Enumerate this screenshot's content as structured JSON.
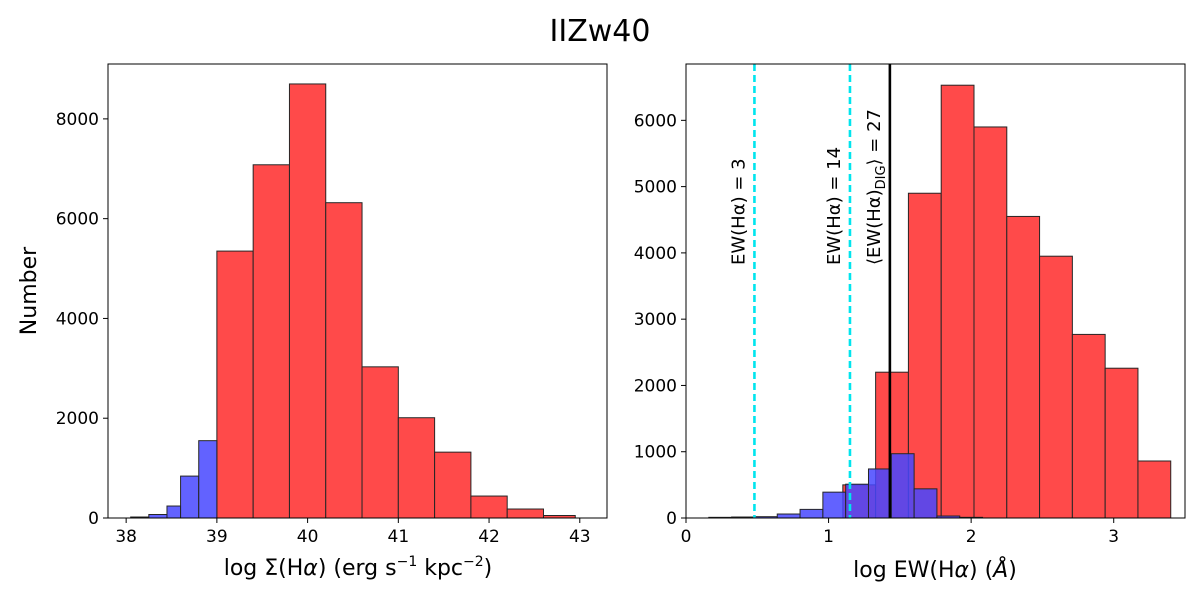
{
  "title": "IIZw40",
  "colors": {
    "red": "#ff4a4a",
    "blue": "#4646ff",
    "overlap": "#5a1fd6",
    "edge": "#262626",
    "cyan": "#00e5ee",
    "black": "#000000"
  },
  "chart_data": [
    {
      "type": "bar",
      "name": "left-histogram",
      "xlabel": "log Σ(Hα) (erg s⁻¹ kpc⁻²)",
      "ylabel": "Number",
      "xlim": [
        37.8,
        43.3
      ],
      "ylim": [
        0,
        9100
      ],
      "xticks": [
        38,
        39,
        40,
        41,
        42,
        43
      ],
      "yticks": [
        0,
        2000,
        4000,
        6000,
        8000
      ],
      "grid": false,
      "red_bins": [
        {
          "x0": 39.0,
          "x1": 39.4,
          "count": 5350
        },
        {
          "x0": 39.4,
          "x1": 39.8,
          "count": 7080
        },
        {
          "x0": 39.8,
          "x1": 40.2,
          "count": 8700
        },
        {
          "x0": 40.2,
          "x1": 40.6,
          "count": 6320
        },
        {
          "x0": 40.6,
          "x1": 41.0,
          "count": 3030
        },
        {
          "x0": 41.0,
          "x1": 41.4,
          "count": 2010
        },
        {
          "x0": 41.4,
          "x1": 41.8,
          "count": 1320
        },
        {
          "x0": 41.8,
          "x1": 42.2,
          "count": 440
        },
        {
          "x0": 42.2,
          "x1": 42.6,
          "count": 180
        },
        {
          "x0": 42.6,
          "x1": 42.95,
          "count": 50
        }
      ],
      "blue_bins": [
        {
          "x0": 38.05,
          "x1": 38.25,
          "count": 20
        },
        {
          "x0": 38.25,
          "x1": 38.45,
          "count": 70
        },
        {
          "x0": 38.45,
          "x1": 38.6,
          "count": 240
        },
        {
          "x0": 38.6,
          "x1": 38.8,
          "count": 840
        },
        {
          "x0": 38.8,
          "x1": 39.0,
          "count": 1550
        }
      ]
    },
    {
      "type": "bar",
      "name": "right-histogram",
      "xlabel": "log EW(Hα) (Å)",
      "ylabel": "",
      "xlim": [
        0.0,
        3.5
      ],
      "ylim": [
        0,
        6850
      ],
      "xticks": [
        0,
        1,
        2,
        3
      ],
      "yticks": [
        0,
        1000,
        2000,
        3000,
        4000,
        5000,
        6000
      ],
      "grid": false,
      "red_bins": [
        {
          "x0": 1.1,
          "x1": 1.33,
          "count": 500
        },
        {
          "x0": 1.33,
          "x1": 1.56,
          "count": 2200
        },
        {
          "x0": 1.56,
          "x1": 1.79,
          "count": 4900
        },
        {
          "x0": 1.79,
          "x1": 2.02,
          "count": 6530
        },
        {
          "x0": 2.02,
          "x1": 2.25,
          "count": 5900
        },
        {
          "x0": 2.25,
          "x1": 2.48,
          "count": 4550
        },
        {
          "x0": 2.48,
          "x1": 2.71,
          "count": 3950
        },
        {
          "x0": 2.71,
          "x1": 2.94,
          "count": 2770
        },
        {
          "x0": 2.94,
          "x1": 3.17,
          "count": 2260
        },
        {
          "x0": 3.17,
          "x1": 3.4,
          "count": 860
        }
      ],
      "blue_bins": [
        {
          "x0": 0.16,
          "x1": 0.32,
          "count": 10
        },
        {
          "x0": 0.32,
          "x1": 0.48,
          "count": 15
        },
        {
          "x0": 0.48,
          "x1": 0.64,
          "count": 20
        },
        {
          "x0": 0.64,
          "x1": 0.8,
          "count": 60
        },
        {
          "x0": 0.8,
          "x1": 0.96,
          "count": 130
        },
        {
          "x0": 0.96,
          "x1": 1.12,
          "count": 390
        },
        {
          "x0": 1.12,
          "x1": 1.28,
          "count": 510
        },
        {
          "x0": 1.28,
          "x1": 1.44,
          "count": 740
        },
        {
          "x0": 1.44,
          "x1": 1.6,
          "count": 970
        },
        {
          "x0": 1.6,
          "x1": 1.76,
          "count": 440
        },
        {
          "x0": 1.76,
          "x1": 1.92,
          "count": 30
        },
        {
          "x0": 1.92,
          "x1": 2.08,
          "count": 10
        }
      ],
      "vlines": [
        {
          "x": 0.48,
          "style": "dashed",
          "color": "cyan",
          "label_main": "EW(Hα) = 3",
          "label_sub": ""
        },
        {
          "x": 1.15,
          "style": "dashed",
          "color": "cyan",
          "label_main": "EW(Hα) = 14",
          "label_sub": ""
        },
        {
          "x": 1.43,
          "style": "solid",
          "color": "black",
          "label_main": "⟨EW(Hα)",
          "label_sub": "DIG",
          "label_end": "⟩ = 27"
        }
      ]
    }
  ]
}
